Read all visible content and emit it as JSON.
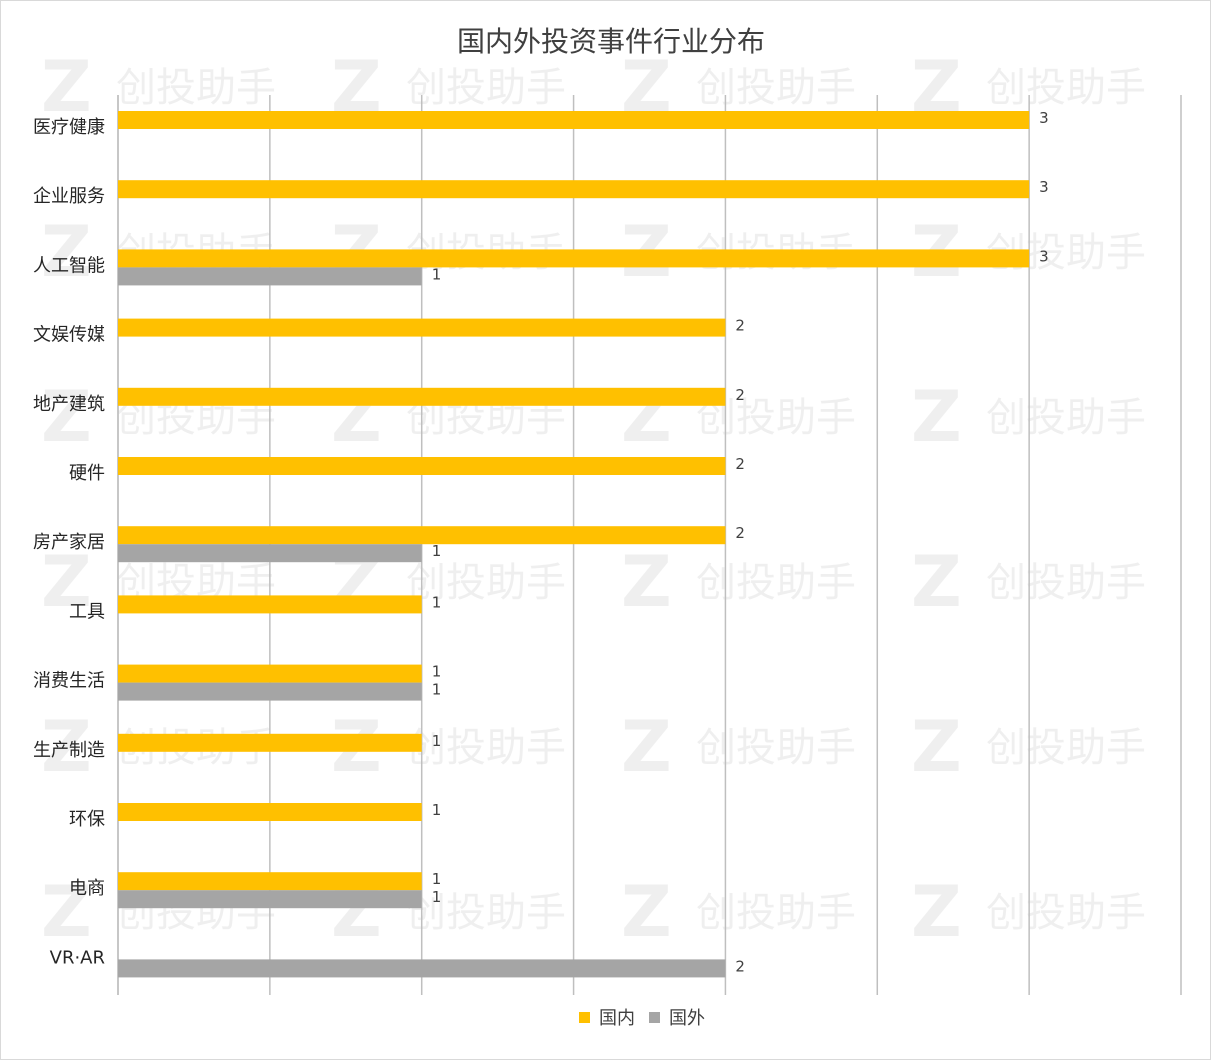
{
  "chart_data": {
    "type": "bar",
    "orientation": "horizontal",
    "title": "国内外投资事件行业分布",
    "categories": [
      "医疗健康",
      "企业服务",
      "人工智能",
      "文娱传媒",
      "地产建筑",
      "硬件",
      "房产家居",
      "工具",
      "消费生活",
      "生产制造",
      "环保",
      "电商",
      "VR·AR"
    ],
    "series": [
      {
        "name": "国内",
        "color": "#ffc000",
        "values": [
          3,
          3,
          3,
          2,
          2,
          2,
          2,
          1,
          1,
          1,
          1,
          1,
          null
        ]
      },
      {
        "name": "国外",
        "color": "#a5a5a5",
        "values": [
          null,
          null,
          1,
          null,
          null,
          null,
          1,
          null,
          1,
          null,
          null,
          1,
          2
        ]
      }
    ],
    "xlim": [
      0,
      3.5
    ],
    "grid": true,
    "x_tick_labels_shown": false,
    "legend_position": "bottom-center",
    "watermark": "创投助手"
  }
}
